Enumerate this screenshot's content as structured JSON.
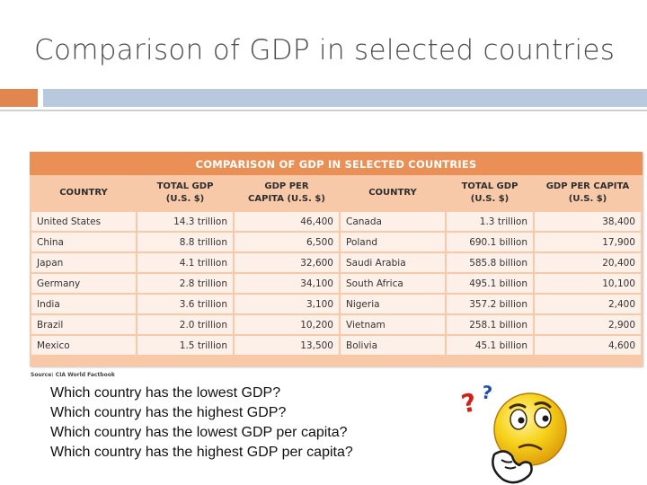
{
  "slide": {
    "title": "Comparison of GDP in selected countries"
  },
  "table": {
    "title": "COMPARISON OF GDP IN SELECTED COUNTRIES",
    "headers": [
      [
        "COUNTRY"
      ],
      [
        "TOTAL GDP",
        "(U.S. $)"
      ],
      [
        "GDP PER",
        "CAPITA (U.S. $)"
      ],
      [
        "COUNTRY"
      ],
      [
        "TOTAL GDP",
        "(U.S. $)"
      ],
      [
        "GDP PER CAPITA",
        "(U.S. $)"
      ]
    ],
    "rows": [
      [
        "United States",
        "14.3 trillion",
        "46,400",
        "Canada",
        "1.3 trillion",
        "38,400"
      ],
      [
        "China",
        "8.8 trillion",
        "6,500",
        "Poland",
        "690.1 billion",
        "17,900"
      ],
      [
        "Japan",
        "4.1 trillion",
        "32,600",
        "Saudi Arabia",
        "585.8 billion",
        "20,400"
      ],
      [
        "Germany",
        "2.8 trillion",
        "34,100",
        "South Africa",
        "495.1 billion",
        "10,100"
      ],
      [
        "India",
        "3.6 trillion",
        "3,100",
        "Nigeria",
        "357.2 billion",
        "2,400"
      ],
      [
        "Brazil",
        "2.0 trillion",
        "10,200",
        "Vietnam",
        "258.1 billion",
        "2,900"
      ],
      [
        "Mexico",
        "1.5 trillion",
        "13,500",
        "Bolivia",
        "45.1 billion",
        "4,600"
      ]
    ],
    "source": "Source: CIA World Factbook"
  },
  "questions": [
    "Which country has the lowest GDP?",
    "Which country has the highest GDP?",
    "Which country has the lowest GDP per capita?",
    "Which country has the highest GDP per capita?"
  ],
  "illustration": {
    "icon": "thinking-face-icon",
    "marks": "? ?",
    "colors": {
      "face": "#f7d21a",
      "face_edge": "#d89a0a",
      "question_red": "#d0211a",
      "question_blue": "#1f4fa8"
    }
  },
  "colors": {
    "table_title_bg": "#ea8f55",
    "table_header_bg": "#f7c9a8",
    "table_cell_bg": "#fcf0e8",
    "accent_orange": "#e0874f",
    "accent_blue": "#b8c9de"
  }
}
